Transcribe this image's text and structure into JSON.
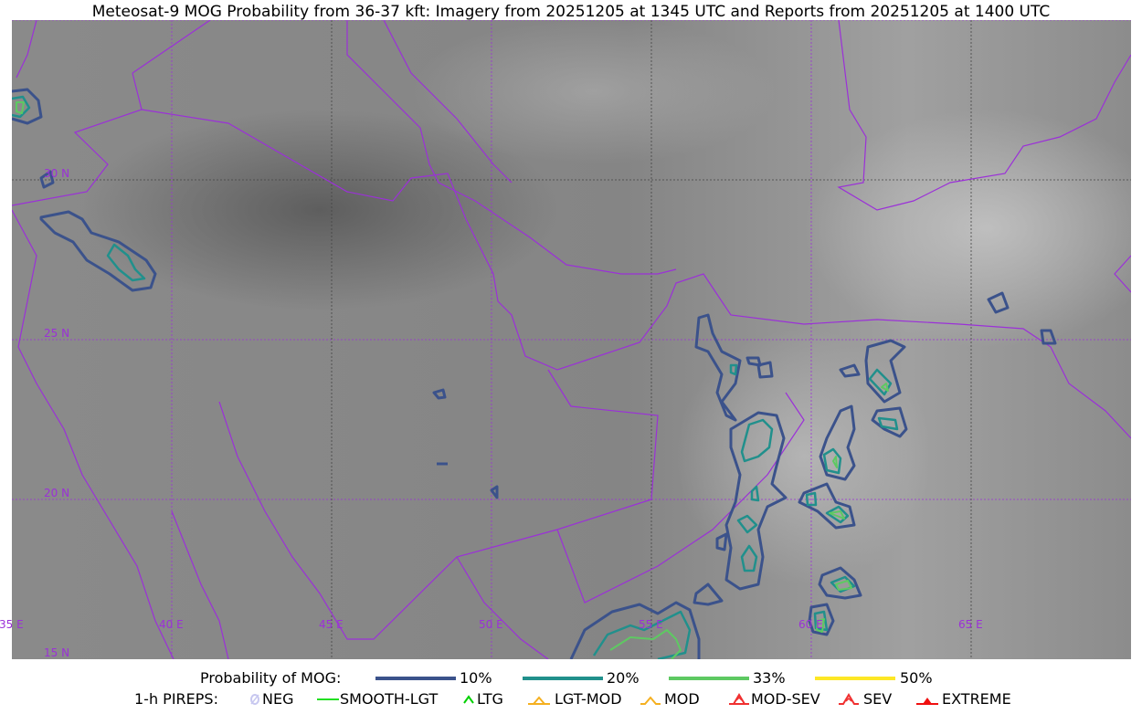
{
  "title": "Meteosat-9 MOG Probability from 36-37 kft: Imagery from 20251205 at 1345 UTC and Reports from 20251205 at 1400 UTC",
  "map": {
    "lon_labels": [
      "35 E",
      "40 E",
      "45 E",
      "50 E",
      "55 E",
      "60 E",
      "65 E"
    ],
    "lat_labels": [
      "30 N",
      "25 N",
      "20 N",
      "15 N"
    ],
    "border_color": "#9b30d8",
    "gridline_style": "dotted"
  },
  "legend": {
    "probability_label": "Probability of MOG:",
    "levels": [
      {
        "label": "10%",
        "color": "#3b528b"
      },
      {
        "label": "20%",
        "color": "#21908c"
      },
      {
        "label": "33%",
        "color": "#5ec962"
      },
      {
        "label": "50%",
        "color": "#fde725"
      }
    ],
    "pireps_label": "1-h PIREPS:",
    "pireps": [
      {
        "label": "NEG",
        "color": "#c8c8f0",
        "icon": "neg-icon"
      },
      {
        "label": "SMOOTH-LGT",
        "color": "#22e022",
        "icon": "smooth-lgt-line-icon"
      },
      {
        "label": "LTG",
        "color": "#00d000",
        "icon": "ltg-caret-icon"
      },
      {
        "label": "LGT-MOD",
        "color": "#f5b020",
        "icon": "lgt-mod-icon"
      },
      {
        "label": "MOD",
        "color": "#f5b020",
        "icon": "mod-caret-icon"
      },
      {
        "label": "MOD-SEV",
        "color": "#f03030",
        "icon": "mod-sev-icon"
      },
      {
        "label": "SEV",
        "color": "#f03030",
        "icon": "sev-icon"
      },
      {
        "label": "EXTREME",
        "color": "#f01010",
        "icon": "extreme-icon"
      }
    ]
  }
}
